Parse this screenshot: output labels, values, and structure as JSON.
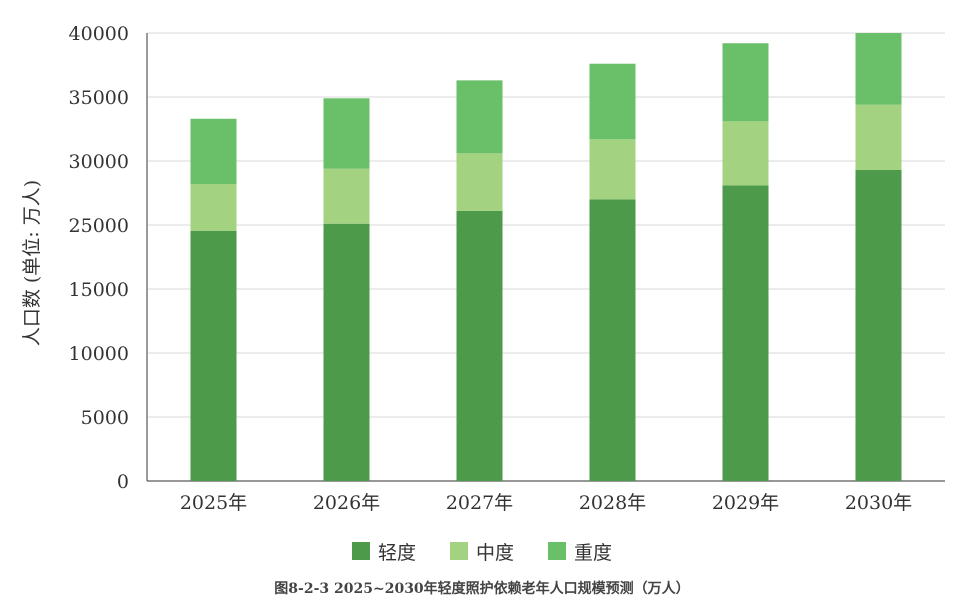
{
  "chart_data": {
    "type": "bar",
    "stacked": true,
    "categories": [
      "2025年",
      "2026年",
      "2027年",
      "2028年",
      "2029年",
      "2030年"
    ],
    "series": [
      {
        "name": "轻度",
        "values": [
          24100,
          25100,
          26100,
          27000,
          28100,
          29300
        ],
        "color": "#4e9a4b"
      },
      {
        "name": "中度",
        "values": [
          4100,
          4300,
          4500,
          4700,
          5000,
          5100
        ],
        "color": "#a3d281"
      },
      {
        "name": "重度",
        "values": [
          5100,
          5500,
          5700,
          5900,
          6100,
          6500
        ],
        "color": "#6abf69"
      }
    ],
    "ylabel": "人口数 (单位: 万人)",
    "ylim": [
      0,
      40000
    ],
    "y_ticks": [
      0,
      5000,
      10000,
      15000,
      25000,
      30000,
      35000,
      40000
    ],
    "grid": true,
    "legend_position": "bottom",
    "title": "图8-2-3  2025~2030年轻度照护依赖老年人口规模预测（万人）"
  }
}
